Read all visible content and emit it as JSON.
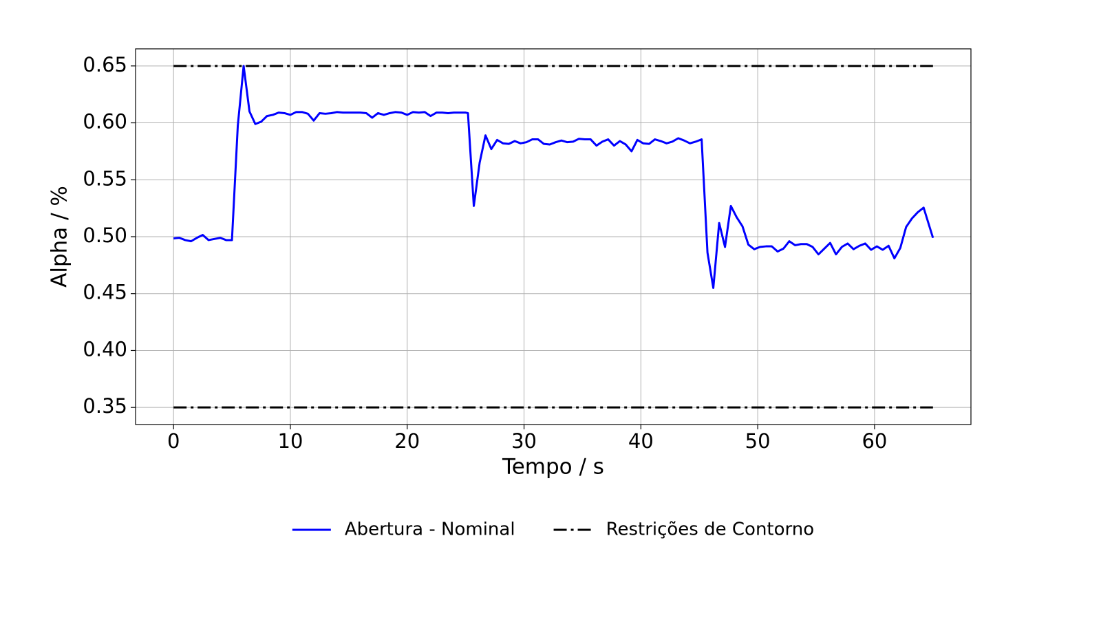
{
  "chart_data": {
    "type": "line",
    "xlabel": "Tempo / s",
    "ylabel": "Alpha / %",
    "xlim": [
      -3.25,
      68.25
    ],
    "ylim": [
      0.335,
      0.665
    ],
    "xticks": [
      0,
      10,
      20,
      30,
      40,
      50,
      60
    ],
    "yticks": [
      0.35,
      {
        "value": 0.4,
        "label": "0.40"
      },
      0.45,
      {
        "value": 0.5,
        "label": "0.50"
      },
      0.55,
      {
        "value": 0.6,
        "label": "0.60"
      },
      0.65
    ],
    "grid": true,
    "legend": "bottom",
    "series": [
      {
        "name": "Abertura - Nominal",
        "color": "#0000ff",
        "style": "solid",
        "x": [
          0,
          0.5,
          1,
          1.5,
          2,
          2.5,
          3,
          3.5,
          4,
          4.5,
          5,
          5.5,
          6,
          6.5,
          7,
          7.5,
          8,
          8.5,
          9,
          9.5,
          10,
          10.5,
          11,
          11.5,
          12,
          12.5,
          13,
          13.5,
          14,
          14.5,
          15,
          15.5,
          16,
          16.5,
          17,
          17.5,
          18,
          18.5,
          19,
          19.5,
          20,
          20.5,
          21,
          21.5,
          22,
          22.5,
          23,
          23.5,
          24,
          24.5,
          25,
          25.2,
          25.7,
          26.2,
          26.7,
          27.2,
          27.7,
          28.2,
          28.7,
          29.2,
          29.7,
          30.2,
          30.7,
          31.2,
          31.7,
          32.2,
          32.7,
          33.2,
          33.7,
          34.2,
          34.7,
          35.2,
          35.7,
          36.2,
          36.7,
          37.2,
          37.7,
          38.2,
          38.7,
          39.2,
          39.7,
          40.2,
          40.7,
          41.2,
          41.7,
          42.2,
          42.7,
          43.2,
          43.7,
          44.2,
          44.7,
          45.2,
          45.7,
          46.2,
          46.7,
          47.2,
          47.7,
          48.2,
          48.7,
          49.2,
          49.7,
          50.2,
          50.7,
          51.2,
          51.7,
          52.2,
          52.7,
          53.2,
          53.7,
          54.2,
          54.7,
          55.2,
          55.7,
          56.2,
          56.7,
          57.2,
          57.7,
          58.2,
          58.7,
          59.2,
          59.7,
          60.2,
          60.7,
          61.2,
          61.7,
          62.2,
          62.7,
          63.2,
          63.7,
          64.2,
          65
        ],
        "values": [
          0.4985,
          0.499,
          0.497,
          0.496,
          0.499,
          0.5015,
          0.497,
          0.498,
          0.499,
          0.497,
          0.497,
          0.5975,
          0.65,
          0.61,
          0.599,
          0.601,
          0.606,
          0.607,
          0.609,
          0.6085,
          0.607,
          0.6095,
          0.6095,
          0.608,
          0.602,
          0.6085,
          0.608,
          0.6085,
          0.6095,
          0.609,
          0.609,
          0.609,
          0.609,
          0.6085,
          0.6045,
          0.6085,
          0.607,
          0.6085,
          0.6095,
          0.609,
          0.607,
          0.6095,
          0.609,
          0.6095,
          0.606,
          0.609,
          0.609,
          0.6085,
          0.609,
          0.609,
          0.609,
          0.6085,
          0.527,
          0.565,
          0.589,
          0.577,
          0.585,
          0.582,
          0.5815,
          0.584,
          0.582,
          0.583,
          0.5855,
          0.5855,
          0.5815,
          0.581,
          0.583,
          0.5845,
          0.583,
          0.5835,
          0.586,
          0.5855,
          0.5855,
          0.58,
          0.5835,
          0.5855,
          0.58,
          0.584,
          0.581,
          0.575,
          0.585,
          0.582,
          0.5815,
          0.5855,
          0.584,
          0.582,
          0.5835,
          0.5865,
          0.5845,
          0.582,
          0.5835,
          0.5855,
          0.486,
          0.455,
          0.512,
          0.491,
          0.527,
          0.517,
          0.509,
          0.493,
          0.489,
          0.491,
          0.4915,
          0.4915,
          0.487,
          0.4895,
          0.496,
          0.4925,
          0.4935,
          0.4935,
          0.491,
          0.4845,
          0.4895,
          0.4945,
          0.4845,
          0.491,
          0.494,
          0.489,
          0.492,
          0.494,
          0.4885,
          0.4915,
          0.4885,
          0.492,
          0.481,
          0.49,
          0.5085,
          0.516,
          0.5215,
          0.5255,
          0.499
        ]
      },
      {
        "name": "Restrições de Contorno",
        "color": "#000000",
        "style": "dashdot",
        "x": [
          0,
          65,
          null,
          0,
          65
        ],
        "values": [
          0.65,
          0.65,
          null,
          0.35,
          0.35
        ]
      }
    ]
  }
}
